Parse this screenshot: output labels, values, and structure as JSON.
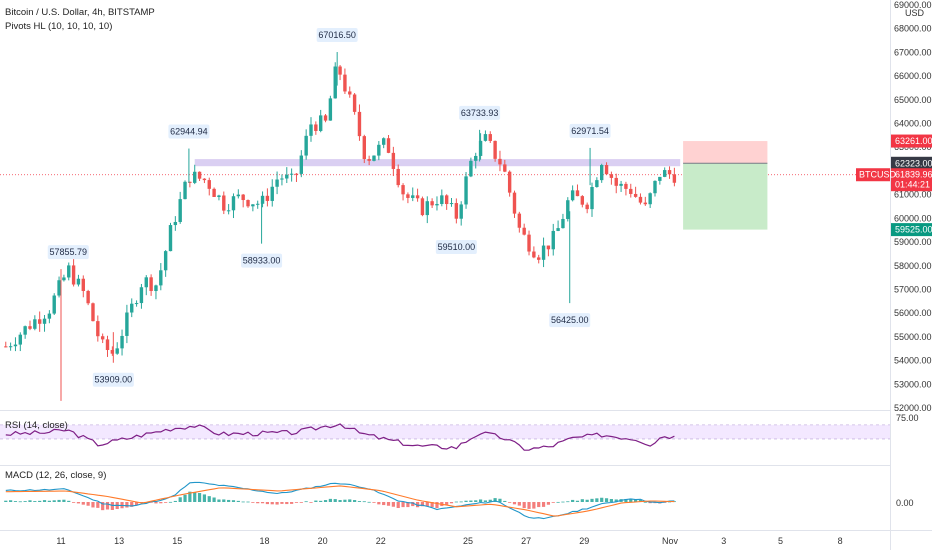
{
  "header": {
    "title": "Bitcoin / U.S. Dollar, 4h, BITSTAMP",
    "indicator": "Pivots HL (10, 10, 10, 10)",
    "currency": "USD"
  },
  "price_axis": {
    "ticks": [
      "69000.00",
      "68000.00",
      "67000.00",
      "66000.00",
      "65000.00",
      "64000.00",
      "63000.00",
      "62000.00",
      "61000.00",
      "60000.00",
      "59000.00",
      "58000.00",
      "57000.00",
      "56000.00",
      "55000.00",
      "54000.00",
      "53000.00",
      "52000.00"
    ],
    "min": 52000,
    "max": 69000
  },
  "time_axis": {
    "labels": [
      "11",
      "13",
      "15",
      "18",
      "20",
      "22",
      "25",
      "27",
      "29",
      "Nov",
      "3",
      "5",
      "8"
    ]
  },
  "price_tags": [
    {
      "text": "63261.00",
      "value": 63261,
      "color": "#f23645"
    },
    {
      "text": "62323.00",
      "value": 62323,
      "color": "#363a45"
    },
    {
      "text": "61839.96",
      "value": 61839.96,
      "color": "#f23645"
    },
    {
      "text": "01:44:21",
      "value": 61420,
      "color": "#f23645"
    },
    {
      "text": "59525.00",
      "value": 59525,
      "color": "#089981"
    }
  ],
  "symbol_tag": "BTCUSD",
  "pivot_labels": [
    {
      "text": "57855.79",
      "value": 57855.79,
      "day": 11.25,
      "pos": "high"
    },
    {
      "text": "53909.00",
      "value": 53909,
      "day": 12.8,
      "pos": "low"
    },
    {
      "text": "62944.94",
      "value": 62944.94,
      "day": 15.4,
      "pos": "high"
    },
    {
      "text": "58933.00",
      "value": 58933,
      "day": 17.9,
      "pos": "low"
    },
    {
      "text": "67016.50",
      "value": 67016.5,
      "day": 20.5,
      "pos": "high"
    },
    {
      "text": "59510.00",
      "value": 59510,
      "day": 24.6,
      "pos": "low"
    },
    {
      "text": "63733.93",
      "value": 63733.93,
      "day": 25.4,
      "pos": "high"
    },
    {
      "text": "56425.00",
      "value": 56425,
      "day": 28.5,
      "pos": "low"
    },
    {
      "text": "62971.54",
      "value": 62971.54,
      "day": 29.2,
      "pos": "high"
    }
  ],
  "rsi": {
    "title": "RSI (14, close)",
    "level_text": "75.00"
  },
  "macd": {
    "title": "MACD (12, 26, close, 9)",
    "level_text": "0.00"
  },
  "colors": {
    "up": "#26a69a",
    "down": "#ef5350",
    "resistance_band": "#d4c7f0",
    "rsi_line": "#7e1f86",
    "rsi_band": "#f3e8ff",
    "macd_line": "#2196c9",
    "signal_line": "#ff7a2a",
    "tp_zone": "#c8ebc9",
    "sl_zone": "#ffd2d2"
  },
  "chart_data": {
    "type": "candlestick",
    "symbol": "BTCUSD",
    "timeframe": "4h",
    "x_unit": "day of October (Nov 1 = 32)",
    "resistance_zone": [
      62200,
      62500
    ],
    "position": {
      "entry": 62323,
      "take_profit": 59525,
      "stop_loss": 63261
    },
    "close_series": [
      {
        "x": 9.1,
        "y": 54600
      },
      {
        "x": 10.0,
        "y": 55600
      },
      {
        "x": 10.6,
        "y": 56200
      },
      {
        "x": 11.25,
        "y": 57855.79
      },
      {
        "x": 11.8,
        "y": 56800
      },
      {
        "x": 12.4,
        "y": 54600
      },
      {
        "x": 12.8,
        "y": 54300
      },
      {
        "x": 13.3,
        "y": 55800
      },
      {
        "x": 13.8,
        "y": 57400
      },
      {
        "x": 14.3,
        "y": 57200
      },
      {
        "x": 14.8,
        "y": 59600
      },
      {
        "x": 15.4,
        "y": 61800
      },
      {
        "x": 16.0,
        "y": 61600
      },
      {
        "x": 16.6,
        "y": 60600
      },
      {
        "x": 17.2,
        "y": 60900
      },
      {
        "x": 17.9,
        "y": 60600
      },
      {
        "x": 18.5,
        "y": 61800
      },
      {
        "x": 19.0,
        "y": 61500
      },
      {
        "x": 19.6,
        "y": 64000
      },
      {
        "x": 20.1,
        "y": 64000
      },
      {
        "x": 20.5,
        "y": 66500
      },
      {
        "x": 21.0,
        "y": 64700
      },
      {
        "x": 21.5,
        "y": 62500
      },
      {
        "x": 22.2,
        "y": 63200
      },
      {
        "x": 22.8,
        "y": 61000
      },
      {
        "x": 23.4,
        "y": 60400
      },
      {
        "x": 24.0,
        "y": 60900
      },
      {
        "x": 24.6,
        "y": 60100
      },
      {
        "x": 25.2,
        "y": 62800
      },
      {
        "x": 25.6,
        "y": 63300
      },
      {
        "x": 26.2,
        "y": 62200
      },
      {
        "x": 26.8,
        "y": 59400
      },
      {
        "x": 27.4,
        "y": 58500
      },
      {
        "x": 28.0,
        "y": 59200
      },
      {
        "x": 28.5,
        "y": 60900
      },
      {
        "x": 29.1,
        "y": 60700
      },
      {
        "x": 29.6,
        "y": 62500
      },
      {
        "x": 30.1,
        "y": 61400
      },
      {
        "x": 30.6,
        "y": 61200
      },
      {
        "x": 31.1,
        "y": 60400
      },
      {
        "x": 31.6,
        "y": 61900
      },
      {
        "x": 32.1,
        "y": 61840
      }
    ],
    "rsi_series": [
      {
        "x": 9.1,
        "y": 62
      },
      {
        "x": 10.5,
        "y": 64
      },
      {
        "x": 11.2,
        "y": 68
      },
      {
        "x": 12.3,
        "y": 47
      },
      {
        "x": 13.3,
        "y": 56
      },
      {
        "x": 14.8,
        "y": 70
      },
      {
        "x": 15.6,
        "y": 74
      },
      {
        "x": 16.5,
        "y": 62
      },
      {
        "x": 17.8,
        "y": 63
      },
      {
        "x": 19.0,
        "y": 64
      },
      {
        "x": 20.6,
        "y": 77
      },
      {
        "x": 21.3,
        "y": 63
      },
      {
        "x": 22.1,
        "y": 55
      },
      {
        "x": 23.2,
        "y": 45
      },
      {
        "x": 24.6,
        "y": 43
      },
      {
        "x": 25.4,
        "y": 64
      },
      {
        "x": 26.2,
        "y": 57
      },
      {
        "x": 27.0,
        "y": 40
      },
      {
        "x": 27.8,
        "y": 44
      },
      {
        "x": 28.6,
        "y": 56
      },
      {
        "x": 29.6,
        "y": 61
      },
      {
        "x": 30.8,
        "y": 55
      },
      {
        "x": 31.3,
        "y": 47
      },
      {
        "x": 31.7,
        "y": 60
      },
      {
        "x": 32.1,
        "y": 58
      }
    ],
    "macd_series": [
      {
        "x": 9.1,
        "y": 620
      },
      {
        "x": 11.2,
        "y": 690
      },
      {
        "x": 12.5,
        "y": -120
      },
      {
        "x": 13.5,
        "y": -230
      },
      {
        "x": 14.8,
        "y": 260
      },
      {
        "x": 15.5,
        "y": 1100
      },
      {
        "x": 17.0,
        "y": 800
      },
      {
        "x": 18.5,
        "y": 450
      },
      {
        "x": 20.5,
        "y": 1050
      },
      {
        "x": 21.5,
        "y": 780
      },
      {
        "x": 22.6,
        "y": 80
      },
      {
        "x": 24.0,
        "y": -400
      },
      {
        "x": 25.0,
        "y": -150
      },
      {
        "x": 26.0,
        "y": 60
      },
      {
        "x": 27.0,
        "y": -780
      },
      {
        "x": 27.6,
        "y": -940
      },
      {
        "x": 28.6,
        "y": -550
      },
      {
        "x": 29.6,
        "y": -120
      },
      {
        "x": 30.6,
        "y": 200
      },
      {
        "x": 31.6,
        "y": -60
      },
      {
        "x": 32.1,
        "y": 70
      }
    ],
    "signal_series": [
      {
        "x": 9.1,
        "y": 560
      },
      {
        "x": 11.2,
        "y": 600
      },
      {
        "x": 12.6,
        "y": 300
      },
      {
        "x": 13.8,
        "y": -60
      },
      {
        "x": 15.2,
        "y": 420
      },
      {
        "x": 16.5,
        "y": 780
      },
      {
        "x": 18.5,
        "y": 600
      },
      {
        "x": 20.6,
        "y": 880
      },
      {
        "x": 22.0,
        "y": 620
      },
      {
        "x": 23.3,
        "y": 90
      },
      {
        "x": 24.6,
        "y": -260
      },
      {
        "x": 25.8,
        "y": -120
      },
      {
        "x": 27.0,
        "y": -430
      },
      {
        "x": 28.0,
        "y": -780
      },
      {
        "x": 29.2,
        "y": -470
      },
      {
        "x": 30.3,
        "y": -50
      },
      {
        "x": 31.3,
        "y": 60
      },
      {
        "x": 32.1,
        "y": 20
      }
    ]
  }
}
